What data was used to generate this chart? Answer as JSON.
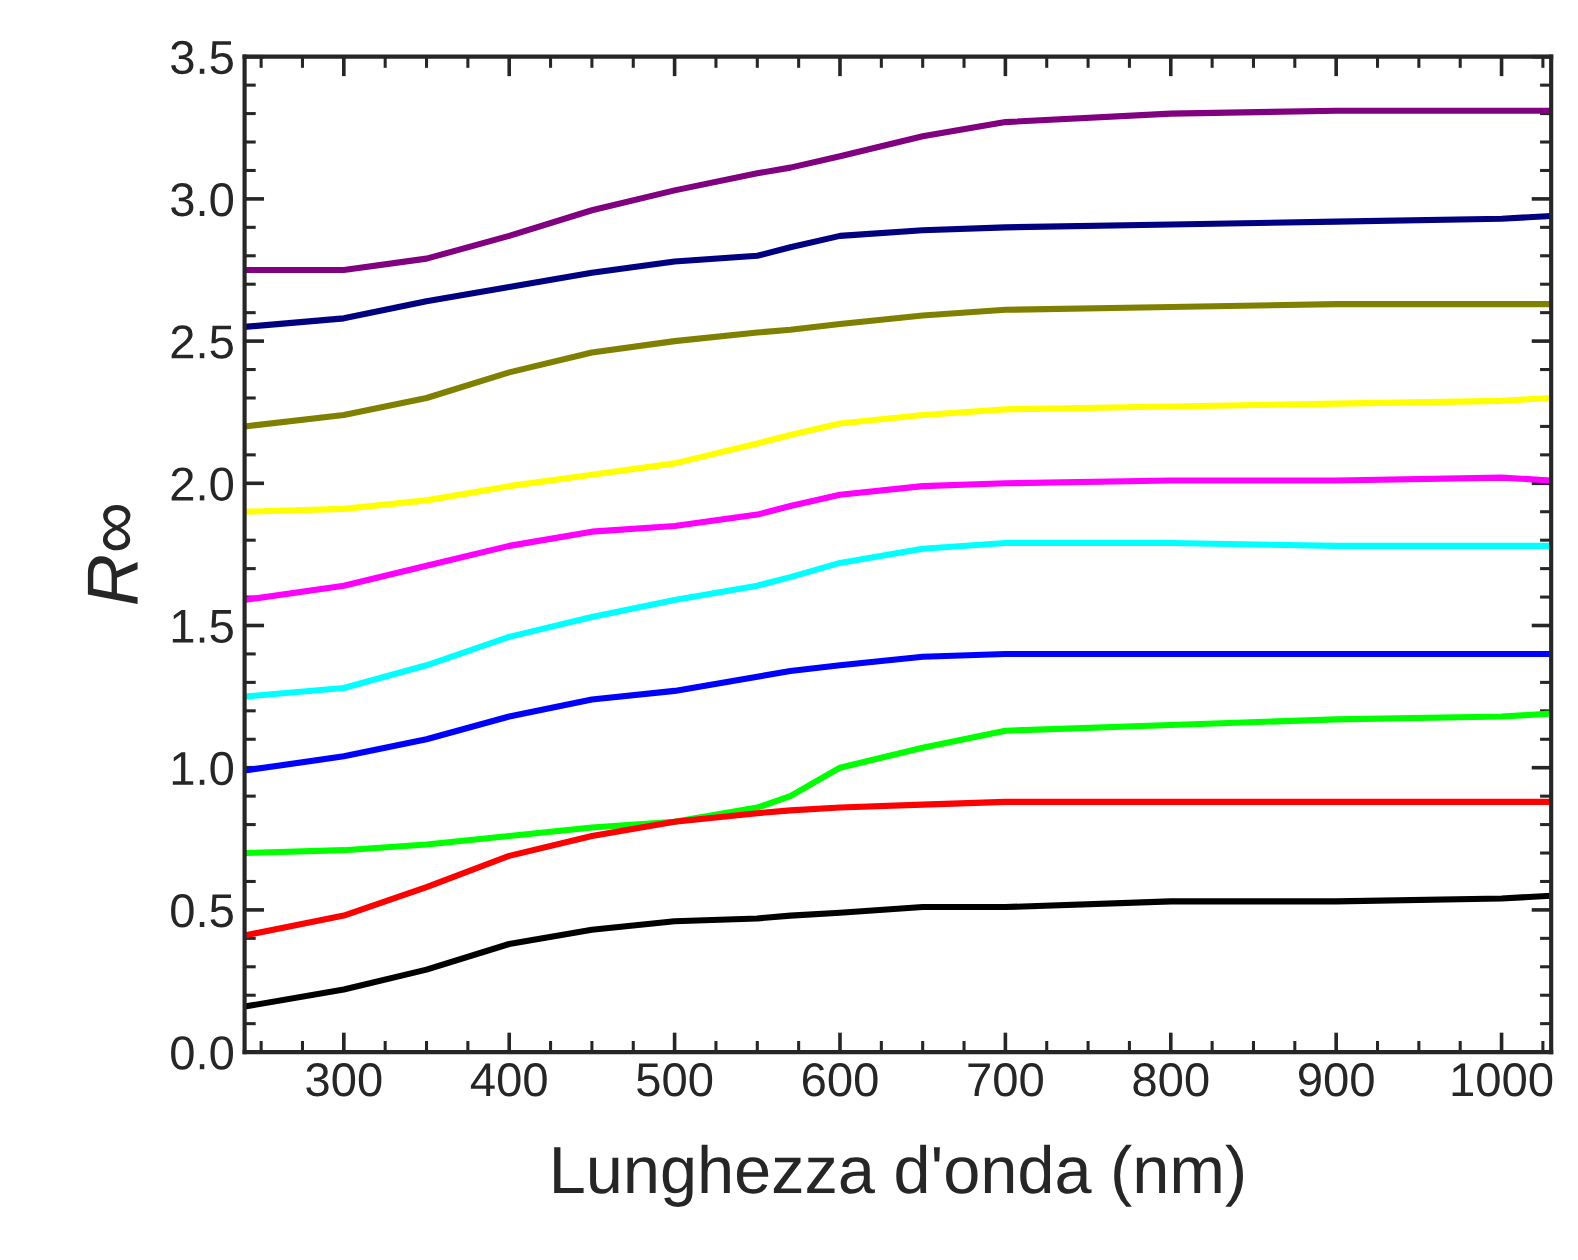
{
  "chart_data": {
    "type": "line",
    "xlabel": "Lunghezza d'onda (nm)",
    "ylabel": "R∞",
    "x": [
      240,
      300,
      350,
      400,
      450,
      500,
      550,
      570,
      600,
      650,
      700,
      800,
      900,
      1000,
      1030
    ],
    "xlim": [
      240,
      1030
    ],
    "xticks": [
      300,
      400,
      500,
      600,
      700,
      800,
      900,
      1000
    ],
    "ylim": [
      0,
      3.5
    ],
    "yticks": [
      {
        "value": 0,
        "label": "0.0"
      },
      0.5,
      {
        "value": 1,
        "label": "1.0"
      },
      1.5,
      {
        "value": 2,
        "label": "2.0"
      },
      2.5,
      {
        "value": 3,
        "label": "3.0"
      },
      3.5
    ],
    "grid": false,
    "legend": false,
    "line_style": "solid",
    "marker": "none",
    "series": [
      {
        "color": "#800080",
        "values": [
          2.75,
          2.75,
          2.79,
          2.87,
          2.96,
          3.03,
          3.09,
          3.11,
          3.15,
          3.22,
          3.27,
          3.3,
          3.31,
          3.31,
          3.31
        ]
      },
      {
        "color": "#000080",
        "values": [
          2.55,
          2.58,
          2.64,
          2.69,
          2.74,
          2.78,
          2.8,
          2.83,
          2.87,
          2.89,
          2.9,
          2.91,
          2.92,
          2.93,
          2.94
        ]
      },
      {
        "color": "#808000",
        "values": [
          2.2,
          2.24,
          2.3,
          2.39,
          2.46,
          2.5,
          2.53,
          2.54,
          2.56,
          2.59,
          2.61,
          2.62,
          2.63,
          2.63,
          2.63
        ]
      },
      {
        "color": "#ffff00",
        "values": [
          1.9,
          1.91,
          1.94,
          1.99,
          2.03,
          2.07,
          2.14,
          2.17,
          2.21,
          2.24,
          2.26,
          2.27,
          2.28,
          2.29,
          2.3
        ]
      },
      {
        "color": "#ff00ff",
        "values": [
          1.59,
          1.64,
          1.71,
          1.78,
          1.83,
          1.85,
          1.89,
          1.92,
          1.96,
          1.99,
          2.0,
          2.01,
          2.01,
          2.02,
          2.01
        ]
      },
      {
        "color": "#00ffff",
        "values": [
          1.25,
          1.28,
          1.36,
          1.46,
          1.53,
          1.59,
          1.64,
          1.67,
          1.72,
          1.77,
          1.79,
          1.79,
          1.78,
          1.78,
          1.78
        ]
      },
      {
        "color": "#0000ff",
        "values": [
          0.99,
          1.04,
          1.1,
          1.18,
          1.24,
          1.27,
          1.32,
          1.34,
          1.36,
          1.39,
          1.4,
          1.4,
          1.4,
          1.4,
          1.4
        ]
      },
      {
        "color": "#00ff00",
        "values": [
          0.7,
          0.71,
          0.73,
          0.76,
          0.79,
          0.81,
          0.86,
          0.9,
          1.0,
          1.07,
          1.13,
          1.15,
          1.17,
          1.18,
          1.19
        ]
      },
      {
        "color": "#ff0000",
        "values": [
          0.41,
          0.48,
          0.58,
          0.69,
          0.76,
          0.81,
          0.84,
          0.85,
          0.86,
          0.87,
          0.88,
          0.88,
          0.88,
          0.88,
          0.88
        ]
      },
      {
        "color": "#000000",
        "values": [
          0.16,
          0.22,
          0.29,
          0.38,
          0.43,
          0.46,
          0.47,
          0.48,
          0.49,
          0.51,
          0.51,
          0.53,
          0.53,
          0.54,
          0.55
        ]
      }
    ]
  }
}
